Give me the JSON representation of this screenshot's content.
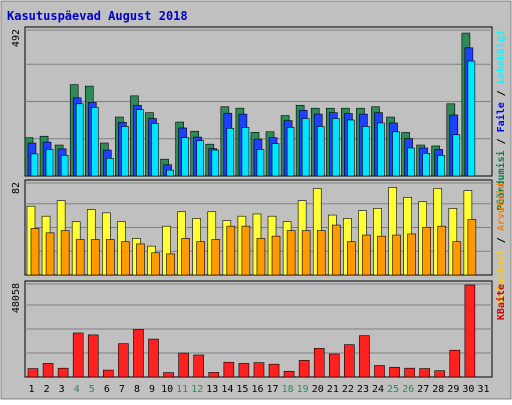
{
  "chart_data": {
    "title": "Kasutuspäevad August 2018",
    "x": [
      "1",
      "2",
      "3",
      "4",
      "5",
      "6",
      "7",
      "8",
      "9",
      "10",
      "11",
      "12",
      "13",
      "14",
      "15",
      "16",
      "17",
      "18",
      "19",
      "20",
      "21",
      "22",
      "23",
      "24",
      "25",
      "26",
      "27",
      "28",
      "29",
      "30",
      "31"
    ],
    "weekend_days": [
      "4",
      "5",
      "11",
      "12",
      "18",
      "19",
      "25",
      "26"
    ],
    "panels": [
      {
        "type": "bar",
        "ymax_label": "492",
        "ylim": [
          0,
          492
        ],
        "legend": [
          "Pöördumisi",
          "Faile",
          "Lehekülgi"
        ],
        "legend_colors": [
          "#008040",
          "#0000ff",
          "#00ffff"
        ],
        "series": [
          {
            "name": "Pöördumisi",
            "color": "#2e8b57",
            "values": [
              130,
              135,
              105,
              310,
              305,
              112,
              200,
              272,
              215,
              57,
              183,
              152,
              108,
              235,
              230,
              148,
              150,
              205,
              240,
              230,
              230,
              230,
              230,
              235,
              200,
              148,
              105,
              102,
              245,
              485,
              null
            ]
          },
          {
            "name": "Faile",
            "color": "#1e40ff",
            "values": [
              112,
              115,
              92,
              265,
              250,
              88,
              182,
              240,
              195,
              38,
              163,
              132,
              93,
              213,
              210,
              125,
              130,
              188,
              223,
              210,
              215,
              212,
              210,
              215,
              180,
              127,
              95,
              90,
              207,
              435,
              null
            ]
          },
          {
            "name": "Lehekülgi",
            "color": "#00e5ff",
            "values": [
              75,
              90,
              70,
              245,
              233,
              60,
              168,
              225,
              178,
              20,
              130,
              120,
              88,
              162,
              165,
              90,
              110,
              165,
              195,
              168,
              195,
              190,
              168,
              180,
              150,
              95,
              77,
              70,
              140,
              390,
              null
            ]
          }
        ]
      },
      {
        "type": "bar",
        "ymax_label": "82",
        "ylim": [
          0,
          82
        ],
        "legend": [
          "Külastusi",
          "Arvuteid"
        ],
        "legend_colors": [
          "#ffcc00",
          "#ff8000"
        ],
        "series": [
          {
            "name": "Külastusi",
            "color": "#ffff33",
            "values": [
              62,
              53,
              67,
              48,
              59,
              56,
              48,
              33,
              26,
              44,
              57,
              51,
              57,
              49,
              53,
              55,
              53,
              48,
              67,
              78,
              54,
              51,
              58,
              60,
              79,
              70,
              66,
              78,
              60,
              76,
              null
            ]
          },
          {
            "name": "Arvuteid",
            "color": "#ff9900",
            "values": [
              42,
              38,
              40,
              32,
              32,
              32,
              30,
              28,
              20,
              19,
              33,
              30,
              32,
              44,
              44,
              33,
              35,
              40,
              40,
              40,
              45,
              30,
              36,
              35,
              36,
              37,
              43,
              44,
              30,
              50,
              null
            ]
          }
        ]
      },
      {
        "type": "bar",
        "ymax_label": "48058",
        "ylim": [
          0,
          48058
        ],
        "legend": [
          "KBaite"
        ],
        "legend_colors": [
          "#cc0000"
        ],
        "series": [
          {
            "name": "KBaite",
            "color": "#ff2020",
            "values": [
              4400,
              7100,
              4600,
              23000,
              22000,
              3600,
              17400,
              24800,
              19800,
              2300,
              12500,
              11500,
              2400,
              7700,
              7100,
              7500,
              6700,
              3000,
              8700,
              15000,
              12000,
              16900,
              21600,
              6000,
              5100,
              4600,
              4400,
              3300,
              14000,
              48058,
              null
            ]
          }
        ]
      }
    ]
  }
}
